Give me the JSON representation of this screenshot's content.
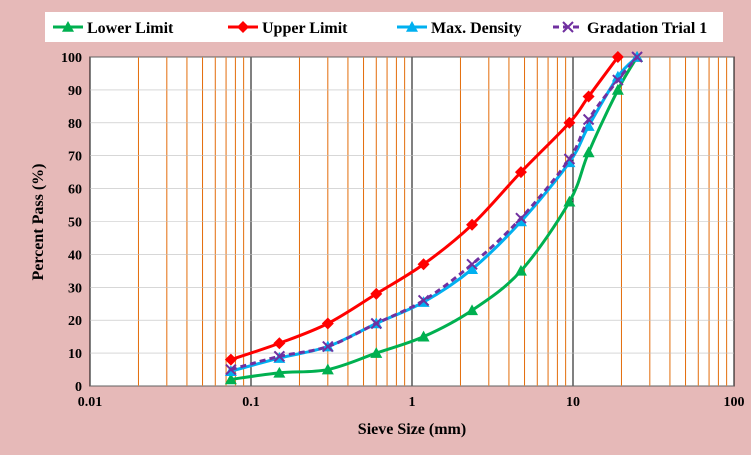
{
  "colors": {
    "background": "#e6b9b8",
    "plot_background": "#ffffff",
    "major_grid": "#000000",
    "minor_grid": "#e36c0a",
    "lower_limit": "#00b050",
    "upper_limit": "#ff0000",
    "max_density": "#00b0f0",
    "gradation_trial": "#7030a0"
  },
  "chart_data": {
    "type": "line",
    "title": "",
    "xlabel": "Sieve Size (mm)",
    "ylabel": "Percent Pass (%)",
    "x_scale": "log",
    "xlim": [
      0.01,
      100
    ],
    "ylim": [
      0,
      100
    ],
    "x_ticks": [
      "0.01",
      "0.1",
      "1",
      "10",
      "100"
    ],
    "y_ticks": [
      "0",
      "10",
      "20",
      "30",
      "40",
      "50",
      "60",
      "70",
      "80",
      "90",
      "100"
    ],
    "grid": true,
    "legend_position": "top",
    "series": [
      {
        "name": "Lower Limit",
        "color": "#00b050",
        "marker": "triangle",
        "dash": "solid",
        "x": [
          0.075,
          0.15,
          0.3,
          0.6,
          1.18,
          2.36,
          4.75,
          9.5,
          12.5,
          19,
          25
        ],
        "y": [
          2,
          4,
          5,
          10,
          15,
          23,
          35,
          56,
          71,
          90,
          100
        ]
      },
      {
        "name": "Upper Limit",
        "color": "#ff0000",
        "marker": "diamond",
        "dash": "solid",
        "x": [
          0.075,
          0.15,
          0.3,
          0.6,
          1.18,
          2.36,
          4.75,
          9.5,
          12.5,
          19
        ],
        "y": [
          8,
          13,
          19,
          28,
          37,
          49,
          65,
          80,
          88,
          100
        ]
      },
      {
        "name": "Max. Density",
        "color": "#00b0f0",
        "marker": "triangle",
        "dash": "solid",
        "x": [
          0.075,
          0.15,
          0.3,
          0.6,
          1.18,
          2.36,
          4.75,
          9.5,
          12.5,
          19,
          25
        ],
        "y": [
          4.5,
          8.5,
          12,
          19,
          25.5,
          35.5,
          50,
          68,
          79,
          94,
          100
        ]
      },
      {
        "name": "Gradation Trial 1",
        "color": "#7030a0",
        "marker": "x",
        "dash": "dashed",
        "x": [
          0.075,
          0.15,
          0.3,
          0.6,
          1.18,
          2.36,
          4.75,
          9.5,
          12.5,
          19,
          25
        ],
        "y": [
          5,
          9,
          12,
          19,
          26,
          37,
          51,
          69,
          81,
          93,
          100
        ]
      }
    ]
  }
}
